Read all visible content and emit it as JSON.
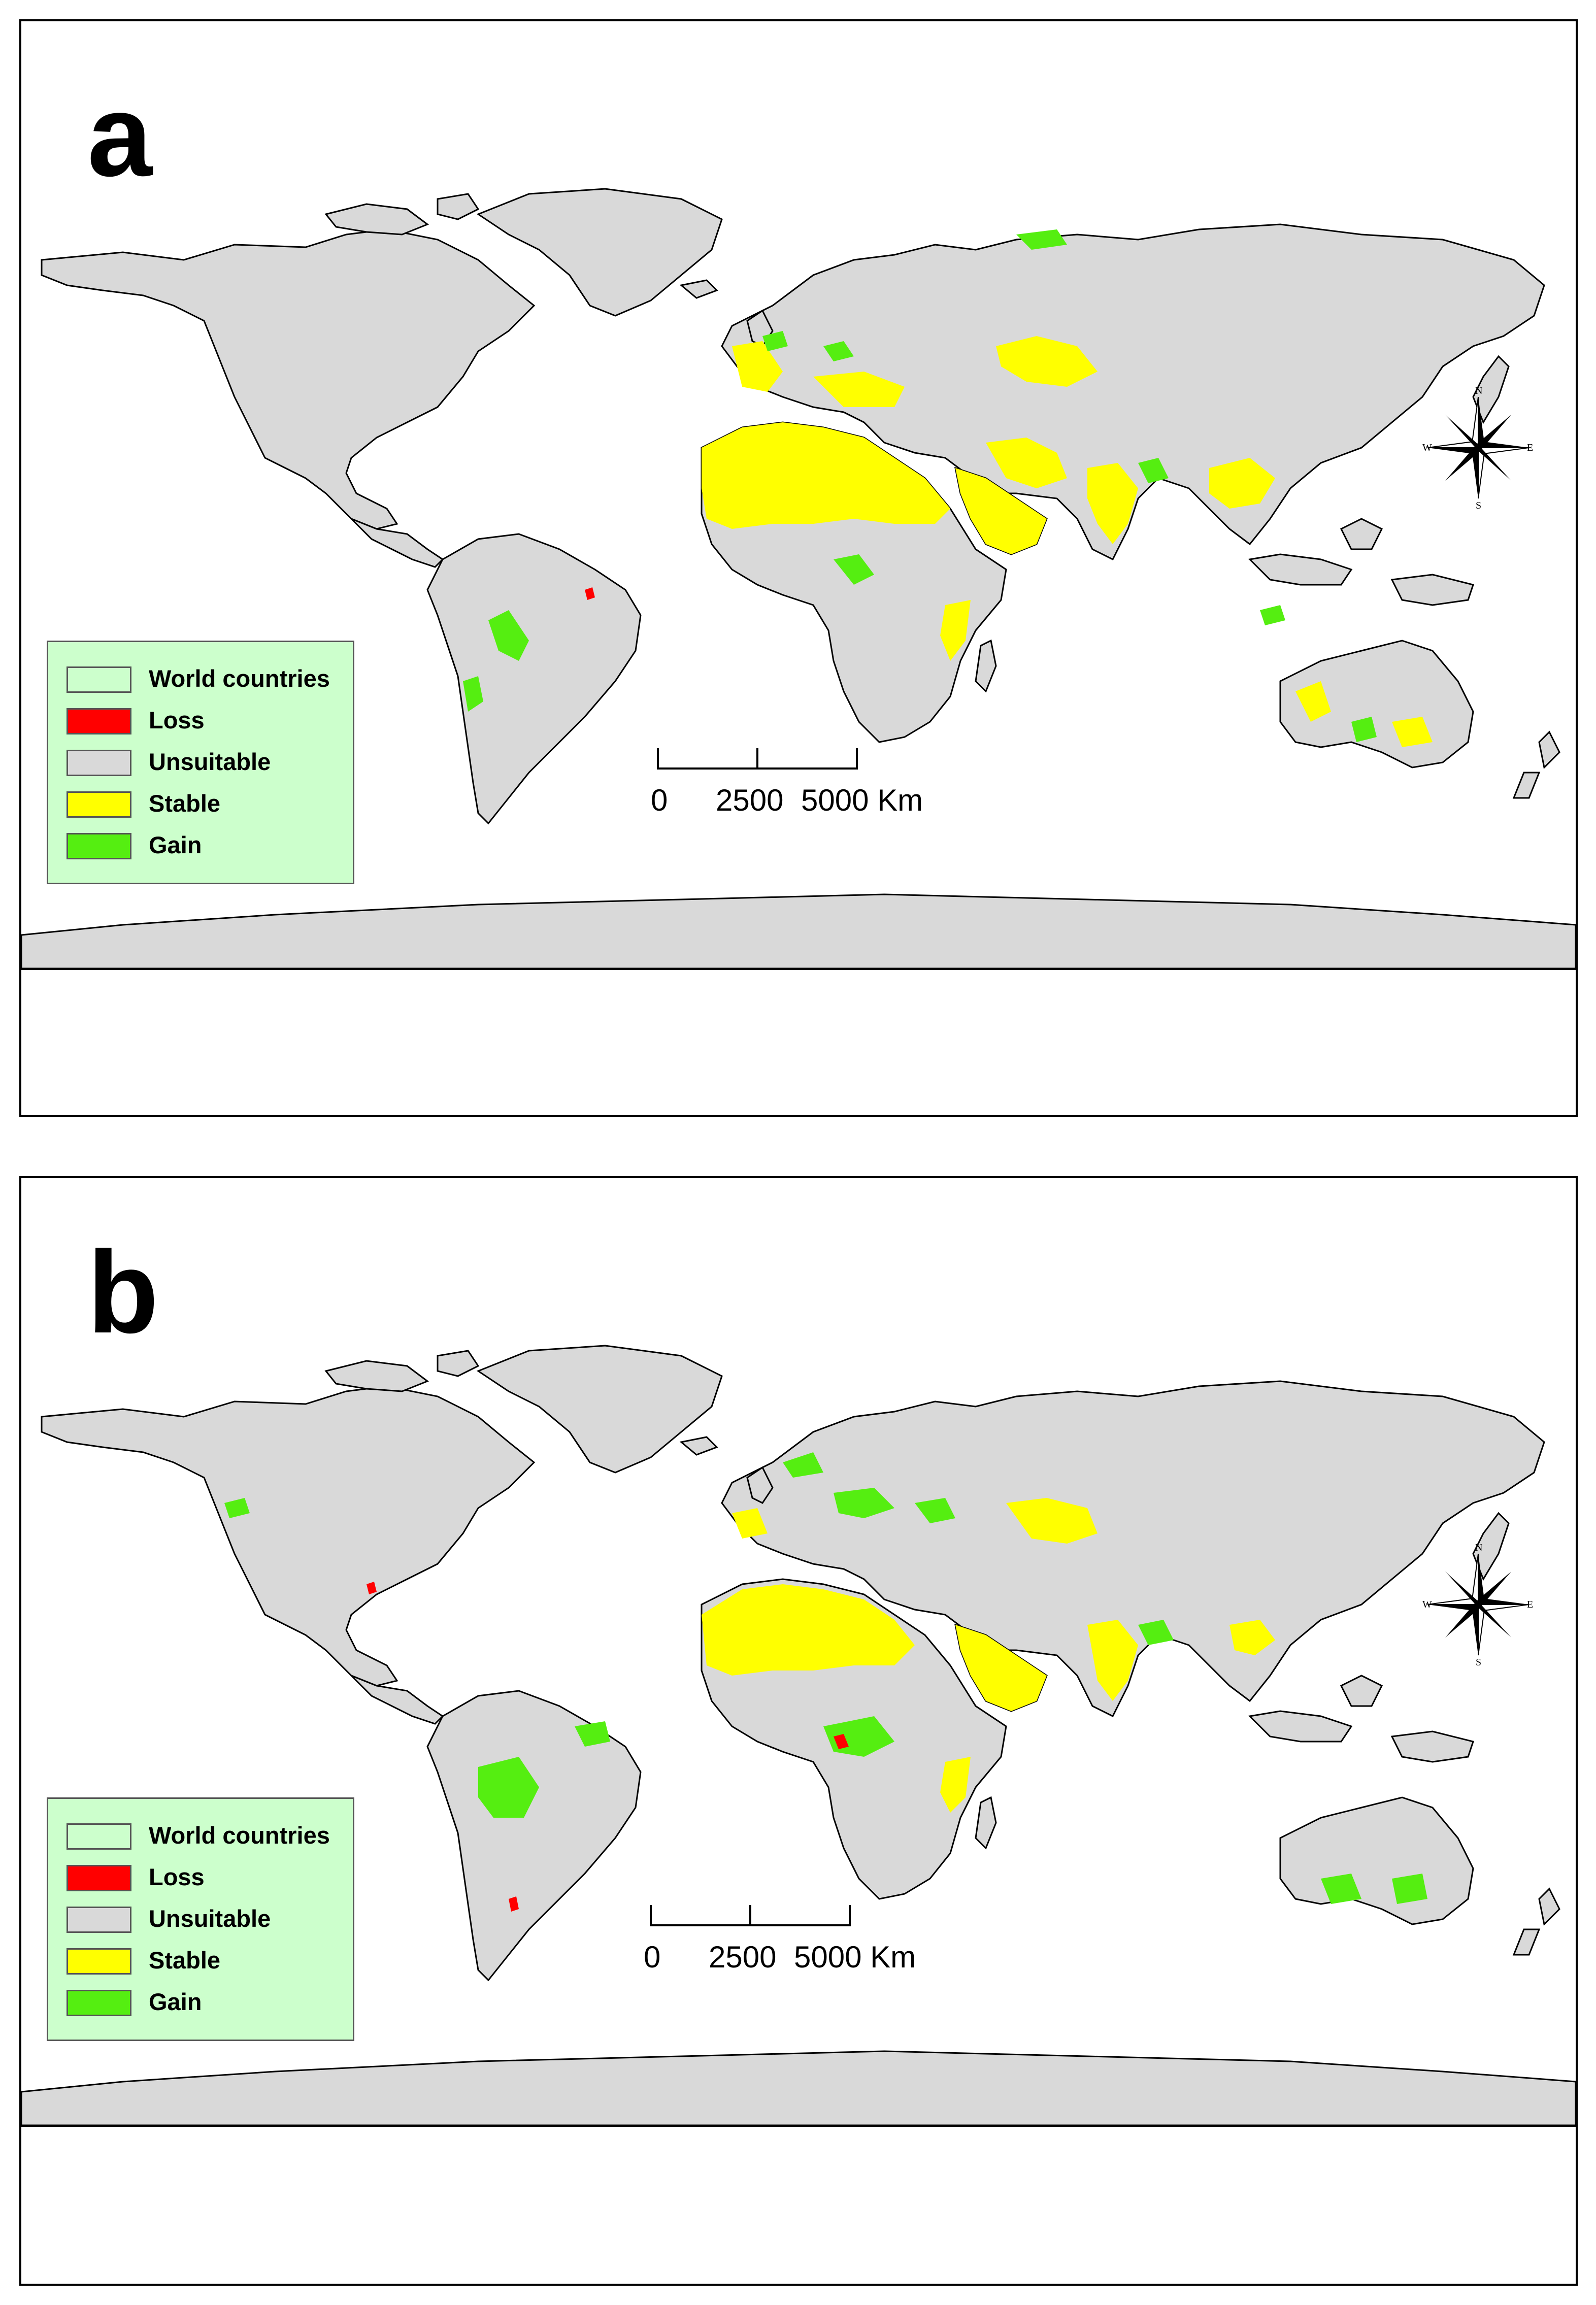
{
  "panels": [
    {
      "id": "a",
      "letter": "a",
      "legend": [
        {
          "key": "world",
          "label": "World countries",
          "color": "#ccffcc"
        },
        {
          "key": "loss",
          "label": "Loss",
          "color": "#ff0000"
        },
        {
          "key": "unsuitable",
          "label": "Unsuitable",
          "color": "#d9d9d9"
        },
        {
          "key": "stable",
          "label": "Stable",
          "color": "#ffff00"
        },
        {
          "key": "gain",
          "label": "Gain",
          "color": "#55ee11"
        }
      ],
      "scale": {
        "ticks": [
          "0",
          "2500",
          "5000 Km"
        ]
      },
      "compass": {
        "n": "N",
        "s": "S",
        "e": "E",
        "w": "W"
      }
    },
    {
      "id": "b",
      "letter": "b",
      "legend": [
        {
          "key": "world",
          "label": "World countries",
          "color": "#ccffcc"
        },
        {
          "key": "loss",
          "label": "Loss",
          "color": "#ff0000"
        },
        {
          "key": "unsuitable",
          "label": "Unsuitable",
          "color": "#d9d9d9"
        },
        {
          "key": "stable",
          "label": "Stable",
          "color": "#ffff00"
        },
        {
          "key": "gain",
          "label": "Gain",
          "color": "#55ee11"
        }
      ],
      "scale": {
        "ticks": [
          "0",
          "2500",
          "5000 Km"
        ]
      },
      "compass": {
        "n": "N",
        "s": "S",
        "e": "E",
        "w": "W"
      }
    }
  ],
  "colors": {
    "land": "#d9d9d9",
    "stable": "#ffff00",
    "gain": "#55ee11",
    "loss": "#ff0000",
    "border": "#000000",
    "legend_bg": "#ccffcc"
  }
}
